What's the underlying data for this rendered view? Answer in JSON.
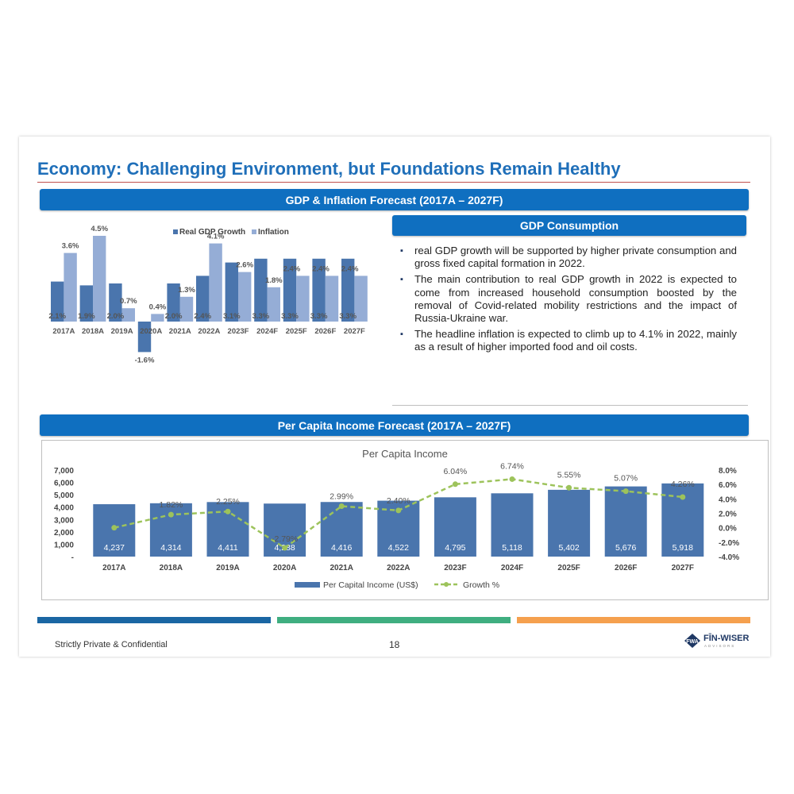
{
  "title": "Economy: Challenging Environment, but Foundations Remain Healthy",
  "gdp_banner": "GDP & Inflation Forecast (2017A – 2027F)",
  "consumption_banner": "GDP Consumption",
  "income_banner": "Per Capita Income Forecast (2017A – 2027F)",
  "bullets": [
    "real GDP growth will be supported by higher private consumption and gross fixed capital formation in 2022.",
    "The main contribution to real GDP growth in 2022 is expected to come from increased household consumption boosted by the removal of Covid-related mobility restrictions and the impact of Russia-Ukraine war.",
    "The headline inflation is expected to climb up to 4.1% in 2022, mainly as a result of higher imported food and oil costs."
  ],
  "footer": {
    "confidential": "Strictly Private & Confidential",
    "page": "18",
    "logo_initials": "FWA",
    "logo_name": "FĪN-WISER",
    "logo_sub": "ADVISORS"
  },
  "colors": {
    "accent": "#1f6fb9",
    "banner": "#0f6fc0",
    "bar_dark": "#4a75ad",
    "bar_light": "#95add6",
    "line": "#9dc35b",
    "rule": "#c0504d",
    "foot_blue": "#1a66a3",
    "foot_green": "#3fae80",
    "foot_orange": "#f5a04e"
  },
  "chart_data": [
    {
      "type": "bar",
      "categories": [
        "2017A",
        "2018A",
        "2019A",
        "2020A",
        "2021A",
        "2022A",
        "2023F",
        "2024F",
        "2025F",
        "2026F",
        "2027F"
      ],
      "series": [
        {
          "name": "Real GDP Growth",
          "values": [
            2.1,
            1.9,
            2.0,
            -1.6,
            2.0,
            2.4,
            3.1,
            3.3,
            3.3,
            3.3,
            3.3
          ],
          "labels": [
            "2.1%",
            "1.9%",
            "2.0%",
            "-1.6%",
            "2.0%",
            "2.4%",
            "3.1%",
            "3.3%",
            "3.3%",
            "3.3%",
            "3.3%"
          ]
        },
        {
          "name": "Inflation",
          "values": [
            3.6,
            4.5,
            0.7,
            0.4,
            1.3,
            4.1,
            2.6,
            1.8,
            2.4,
            2.4,
            2.4
          ],
          "labels": [
            "3.6%",
            "4.5%",
            "0.7%",
            "0.4%",
            "1.3%",
            "4.1%",
            "2.6%",
            "1.8%",
            "2.4%",
            "2.4%",
            "2.4%"
          ]
        }
      ],
      "legend": "top"
    },
    {
      "type": "bar",
      "title": "Per Capita Income",
      "categories": [
        "2017A",
        "2018A",
        "2019A",
        "2020A",
        "2021A",
        "2022A",
        "2023F",
        "2024F",
        "2025F",
        "2026F",
        "2027F"
      ],
      "series": [
        {
          "name": "Per Capital Income (US$)",
          "values": [
            4237,
            4314,
            4411,
            4288,
            4416,
            4522,
            4795,
            5118,
            5402,
            5676,
            5918
          ],
          "labels": [
            "4,237",
            "4,314",
            "4,411",
            "4,288",
            "4,416",
            "4,522",
            "4,795",
            "5,118",
            "5,402",
            "5,676",
            "5,918"
          ]
        },
        {
          "name": "Growth %",
          "type": "line",
          "axis": "right",
          "values": [
            0.0,
            1.82,
            2.25,
            -2.79,
            2.99,
            2.4,
            6.04,
            6.74,
            5.55,
            5.07,
            4.26
          ],
          "labels": [
            "",
            "1.82%",
            "2.25%",
            "-2.79%",
            "2.99%",
            "2.40%",
            "6.04%",
            "6.74%",
            "5.55%",
            "5.07%",
            "4.26%"
          ]
        }
      ],
      "y_left": {
        "range": [
          0,
          7000
        ],
        "ticks": [
          "-",
          "1,000",
          "2,000",
          "3,000",
          "4,000",
          "5,000",
          "6,000",
          "7,000"
        ]
      },
      "y_right": {
        "range": [
          -4,
          8
        ],
        "ticks": [
          "-4.0%",
          "-2.0%",
          "0.0%",
          "2.0%",
          "4.0%",
          "6.0%",
          "8.0%"
        ]
      },
      "legend": "bottom"
    }
  ]
}
